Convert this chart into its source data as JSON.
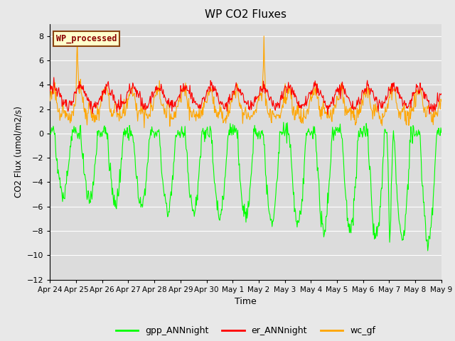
{
  "title": "WP CO2 Fluxes",
  "xlabel": "Time",
  "ylabel": "CO2 Flux (umol/m2/s)",
  "ylim": [
    -12,
    9
  ],
  "yticks": [
    -12,
    -10,
    -8,
    -6,
    -4,
    -2,
    0,
    2,
    4,
    6,
    8
  ],
  "bg_color": "#e8e8e8",
  "plot_bg_color": "#dcdcdc",
  "grid_color": "#ffffff",
  "annotation_text": "WP_processed",
  "annotation_color": "#8b0000",
  "annotation_bg": "#ffffcc",
  "annotation_border": "#8b4513",
  "line_colors": {
    "gpp": "#00ff00",
    "er": "#ff0000",
    "wc": "#ffa500"
  },
  "legend_labels": [
    "gpp_ANNnight",
    "er_ANNnight",
    "wc_gf"
  ],
  "n_points": 720,
  "n_days": 15
}
